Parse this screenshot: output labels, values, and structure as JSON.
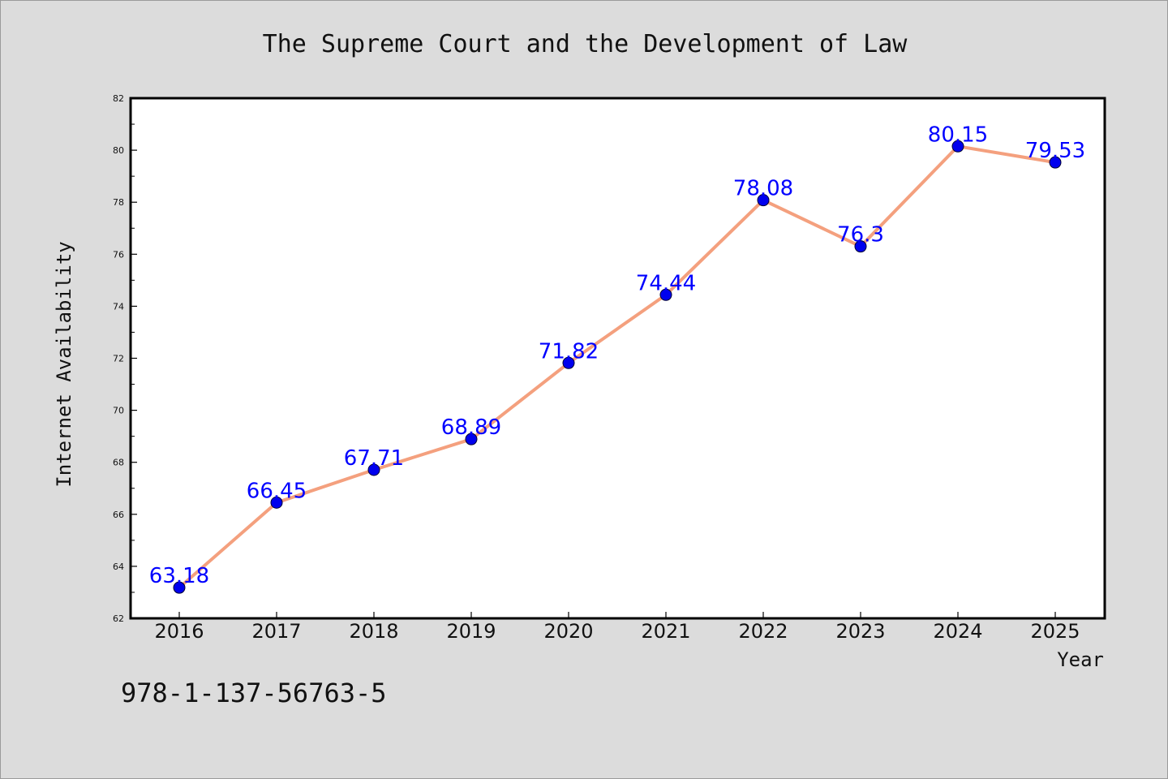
{
  "chart_data": {
    "type": "line",
    "title": "The Supreme Court and the Development of Law",
    "xlabel": "Year",
    "ylabel": "Internet Availability",
    "categories": [
      "2016",
      "2017",
      "2018",
      "2019",
      "2020",
      "2021",
      "2022",
      "2023",
      "2024",
      "2025"
    ],
    "series": [
      {
        "values": [
          63.18,
          66.45,
          67.71,
          68.89,
          71.82,
          74.44,
          78.08,
          76.3,
          80.15,
          79.53
        ],
        "data_labels": [
          "63.18",
          "66.45",
          "67.71",
          "68.89",
          "71.82",
          "74.44",
          "78.08",
          "76.3",
          "80.15",
          "79.53"
        ],
        "line_color": "#f4a07e",
        "marker_color": "#0000ee",
        "label_color": "#0000ff"
      }
    ],
    "ylim": [
      62,
      82
    ],
    "yticks": [
      "62",
      "64",
      "66",
      "68",
      "70",
      "72",
      "74",
      "76",
      "78",
      "80",
      "82"
    ],
    "grid": false,
    "legend": false
  },
  "footer_text": "978-1-137-56763-5"
}
